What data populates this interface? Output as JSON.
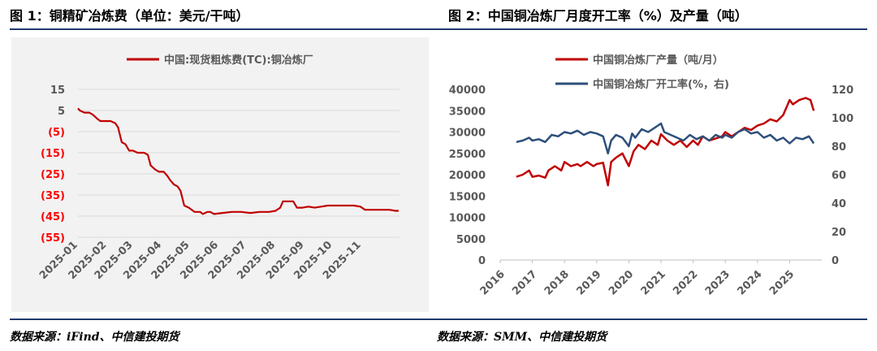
{
  "header": {
    "fig1_title": "图 1：铜精矿冶炼费（单位：美元/干吨）",
    "fig2_title": "图 2：中国铜冶炼厂月度开工率（%）及产量（吨）"
  },
  "footer": {
    "source1": "数据来源：iFind、中信建投期货",
    "source2": "数据来源：SMM、中信建投期货"
  },
  "colors": {
    "red": "#c00000",
    "navy": "#2e4f7a",
    "rule": "#1f3a6e",
    "neg": "#ff0000"
  },
  "chart_data": [
    {
      "type": "line",
      "series": [
        {
          "name": "中国:现货粗炼费(TC):铜冶炼厂",
          "color": "#c00000",
          "points": [
            [
              "2025-01-01",
              6
            ],
            [
              "2025-01-03",
              5
            ],
            [
              "2025-01-08",
              4
            ],
            [
              "2025-01-13",
              4
            ],
            [
              "2025-01-17",
              3
            ],
            [
              "2025-01-22",
              1
            ],
            [
              "2025-01-25",
              0
            ],
            [
              "2025-02-05",
              0
            ],
            [
              "2025-02-10",
              -1
            ],
            [
              "2025-02-13",
              -3
            ],
            [
              "2025-02-17",
              -10
            ],
            [
              "2025-02-21",
              -11
            ],
            [
              "2025-02-25",
              -14
            ],
            [
              "2025-03-01",
              -14
            ],
            [
              "2025-03-06",
              -15
            ],
            [
              "2025-03-13",
              -15
            ],
            [
              "2025-03-17",
              -16
            ],
            [
              "2025-03-20",
              -21
            ],
            [
              "2025-03-25",
              -23
            ],
            [
              "2025-03-29",
              -24
            ],
            [
              "2025-04-03",
              -24
            ],
            [
              "2025-04-07",
              -26
            ],
            [
              "2025-04-10",
              -28
            ],
            [
              "2025-04-14",
              -30
            ],
            [
              "2025-04-18",
              -31
            ],
            [
              "2025-04-21",
              -33
            ],
            [
              "2025-04-25",
              -40
            ],
            [
              "2025-04-30",
              -41
            ],
            [
              "2025-05-06",
              -43
            ],
            [
              "2025-05-12",
              -43
            ],
            [
              "2025-05-15",
              -44
            ],
            [
              "2025-05-20",
              -43
            ],
            [
              "2025-05-23",
              -43
            ],
            [
              "2025-05-27",
              -44
            ],
            [
              "2025-06-05",
              -43.5
            ],
            [
              "2025-06-15",
              -43
            ],
            [
              "2025-06-25",
              -43
            ],
            [
              "2025-07-05",
              -43.5
            ],
            [
              "2025-07-15",
              -43
            ],
            [
              "2025-07-25",
              -43
            ],
            [
              "2025-08-01",
              -42.5
            ],
            [
              "2025-08-06",
              -41
            ],
            [
              "2025-08-09",
              -38
            ],
            [
              "2025-08-16",
              -38
            ],
            [
              "2025-08-20",
              -38
            ],
            [
              "2025-08-24",
              -41
            ],
            [
              "2025-08-30",
              -41
            ],
            [
              "2025-09-05",
              -40.5
            ],
            [
              "2025-09-12",
              -41
            ],
            [
              "2025-09-19",
              -40.5
            ],
            [
              "2025-09-26",
              -40
            ],
            [
              "2025-10-03",
              -40
            ],
            [
              "2025-10-10",
              -40
            ],
            [
              "2025-10-17",
              -40
            ],
            [
              "2025-10-24",
              -40
            ],
            [
              "2025-10-31",
              -40.5
            ],
            [
              "2025-11-05",
              -42
            ],
            [
              "2025-11-10",
              -42
            ],
            [
              "2025-11-17",
              -42
            ],
            [
              "2025-11-24",
              -42
            ],
            [
              "2025-12-01",
              -42
            ],
            [
              "2025-12-08",
              -42.5
            ],
            [
              "2025-12-11",
              -42.5
            ]
          ]
        }
      ],
      "ylim": [
        -55,
        15
      ],
      "yticks": [
        "15",
        "5",
        "(5)",
        "(15)",
        "(25)",
        "(35)",
        "(45)",
        "(55)"
      ],
      "ytick_values": [
        15,
        5,
        -5,
        -15,
        -25,
        -35,
        -45,
        -55
      ],
      "xlim": [
        "2025-01-01",
        "2025-12-12"
      ],
      "xticks": [
        "2025-01",
        "2025-02",
        "2025-03",
        "2025-04",
        "2025-05",
        "2025-06",
        "2025-07",
        "2025-08",
        "2025-09",
        "2025-10",
        "2025-11"
      ],
      "grid": true,
      "legend_position": "top"
    },
    {
      "type": "line",
      "xlim": [
        2016,
        2026
      ],
      "xticks": [
        "2016",
        "2017",
        "2018",
        "2019",
        "2020",
        "2021",
        "2022",
        "2023",
        "2024",
        "2025"
      ],
      "ylim_left": [
        0,
        40000
      ],
      "yticks_left": [
        "0",
        "5000",
        "10000",
        "15000",
        "20000",
        "25000",
        "30000",
        "35000",
        "40000"
      ],
      "ylim_right": [
        0,
        120
      ],
      "yticks_right": [
        "0",
        "20",
        "40",
        "60",
        "80",
        "100",
        "120"
      ],
      "grid": false,
      "legend_position": "top-left",
      "series": [
        {
          "name": "中国铜冶炼厂产量（吨/月）",
          "axis": "left",
          "color": "#c00000",
          "x": [
            2016.5,
            2016.7,
            2016.9,
            2017.0,
            2017.2,
            2017.4,
            2017.5,
            2017.7,
            2017.9,
            2018.0,
            2018.2,
            2018.4,
            2018.5,
            2018.7,
            2018.9,
            2019.0,
            2019.2,
            2019.35,
            2019.45,
            2019.6,
            2019.8,
            2020.0,
            2020.15,
            2020.3,
            2020.5,
            2020.7,
            2020.9,
            2021.0,
            2021.2,
            2021.4,
            2021.6,
            2021.8,
            2022.0,
            2022.15,
            2022.3,
            2022.5,
            2022.7,
            2022.9,
            2023.0,
            2023.2,
            2023.4,
            2023.6,
            2023.8,
            2024.0,
            2024.2,
            2024.4,
            2024.6,
            2024.8,
            2025.0,
            2025.1,
            2025.3,
            2025.5,
            2025.65,
            2025.75
          ],
          "values": [
            19500,
            20000,
            21000,
            19500,
            19800,
            19300,
            21000,
            22000,
            21000,
            23000,
            22000,
            22500,
            22000,
            23000,
            22000,
            22500,
            22800,
            17500,
            23000,
            24000,
            25000,
            22000,
            25500,
            27000,
            26000,
            28000,
            27000,
            29500,
            28000,
            27000,
            28000,
            26500,
            28000,
            27000,
            29000,
            28000,
            28500,
            29000,
            30000,
            29000,
            30000,
            31000,
            30500,
            31500,
            32000,
            33000,
            32500,
            34000,
            37500,
            36500,
            37500,
            38000,
            37500,
            35000
          ]
        },
        {
          "name": "中国铜冶炼厂开工率(%，右)",
          "axis": "right",
          "color": "#2e4f7a",
          "x": [
            2016.5,
            2016.7,
            2016.9,
            2017.0,
            2017.2,
            2017.4,
            2017.6,
            2017.8,
            2018.0,
            2018.2,
            2018.4,
            2018.6,
            2018.8,
            2019.0,
            2019.2,
            2019.35,
            2019.45,
            2019.6,
            2019.8,
            2020.0,
            2020.1,
            2020.2,
            2020.4,
            2020.6,
            2020.8,
            2021.0,
            2021.1,
            2021.3,
            2021.5,
            2021.7,
            2021.9,
            2022.1,
            2022.3,
            2022.5,
            2022.7,
            2022.9,
            2023.0,
            2023.2,
            2023.4,
            2023.6,
            2023.8,
            2024.0,
            2024.2,
            2024.4,
            2024.6,
            2024.8,
            2025.0,
            2025.2,
            2025.4,
            2025.6,
            2025.75
          ],
          "values": [
            83,
            84,
            86,
            84,
            85,
            83,
            88,
            87,
            90,
            89,
            91,
            88,
            90,
            89,
            87,
            75,
            84,
            88,
            86,
            80,
            89,
            86,
            92,
            90,
            93,
            96,
            90,
            88,
            86,
            84,
            88,
            85,
            87,
            84,
            88,
            86,
            88,
            86,
            90,
            92,
            89,
            90,
            86,
            88,
            84,
            86,
            82,
            86,
            85,
            87,
            82
          ]
        }
      ]
    }
  ]
}
